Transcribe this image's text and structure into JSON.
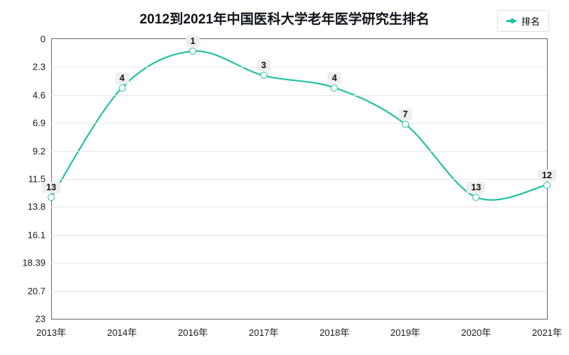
{
  "chart": {
    "type": "line",
    "title": "2012到2021年中国医科大学老年医学研究生排名",
    "title_fontsize": 19,
    "title_color": "#0f1419",
    "background_color": "#ffffff",
    "grid_color": "#e6e6e6",
    "axis_color": "#666666",
    "tick_fontsize": 13,
    "line_color": "#24c1a3",
    "line_width": 2.2,
    "marker_border_color": "#24c1a3",
    "marker_fill": "#ffffff",
    "marker_size": 10,
    "label_bg": "#eeeeee",
    "label_fontsize": 12.5,
    "legend": {
      "label": "排名",
      "swatch_color": "#24c1a3"
    },
    "y_inverted": true,
    "ylim": [
      0,
      23
    ],
    "yticks": [
      0,
      2.3,
      4.6,
      6.9,
      9.2,
      11.5,
      13.8,
      16.1,
      18.39,
      20.7,
      23
    ],
    "ytick_labels": [
      "0",
      "2.3",
      "4.6",
      "6.9",
      "9.2",
      "11.5",
      "13.8",
      "16.1",
      "18.39",
      "20.7",
      "23"
    ],
    "x_categories": [
      "2013年",
      "2014年",
      "2016年",
      "2017年",
      "2018年",
      "2019年",
      "2020年",
      "2021年"
    ],
    "values": [
      13,
      4,
      1,
      3,
      4,
      7,
      13,
      12
    ],
    "point_labels": [
      "13",
      "4",
      "1",
      "3",
      "4",
      "7",
      "13",
      "12"
    ]
  }
}
